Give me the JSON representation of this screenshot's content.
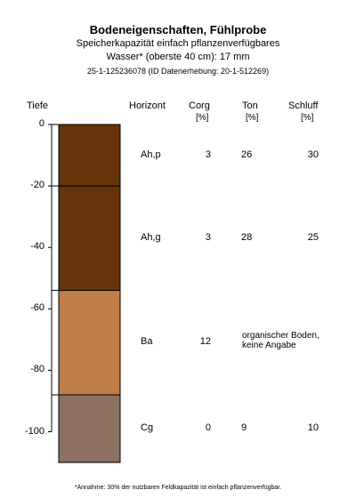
{
  "chart_data": {
    "type": "soil-profile",
    "title": "Bodeneigenschaften, Fühlprobe",
    "subtitle_line1": "Speicherkapazität einfach pflanzenverfügbares",
    "subtitle_line2": "Wasser* (oberste 40 cm): 17 mm",
    "id_line": "25-1-125236078 (ID Datenerhebung: 20-1-512269)",
    "footnote": "*Annahme: 30% der nutzbaren Feldkapazität ist einfach pflanzenverfügbar.",
    "ylabel": "Tiefe",
    "ylim": [
      0,
      -110
    ],
    "yticks": [
      0,
      -20,
      -40,
      -60,
      -80,
      -100
    ],
    "columns": {
      "horizon": "Horizont",
      "corg": "Corg",
      "ton": "Ton",
      "schluff": "Schluff",
      "unit": "[%]"
    },
    "horizons": [
      {
        "name": "Ah,p",
        "top": 0,
        "bottom": -20,
        "corg": "3",
        "ton": "26",
        "schluff": "30",
        "note": "",
        "color": "#653509"
      },
      {
        "name": "Ah,g",
        "top": -20,
        "bottom": -54,
        "corg": "3",
        "ton": "28",
        "schluff": "25",
        "note": "",
        "color": "#653509"
      },
      {
        "name": "Ba",
        "top": -54,
        "bottom": -88,
        "corg": "12",
        "ton": "",
        "schluff": "",
        "note": "organischer Boden, keine Angabe",
        "color": "#C07D48"
      },
      {
        "name": "Cg",
        "top": -88,
        "bottom": -110,
        "corg": "0",
        "ton": "9",
        "schluff": "10",
        "note": "",
        "color": "#8C7160"
      }
    ]
  }
}
